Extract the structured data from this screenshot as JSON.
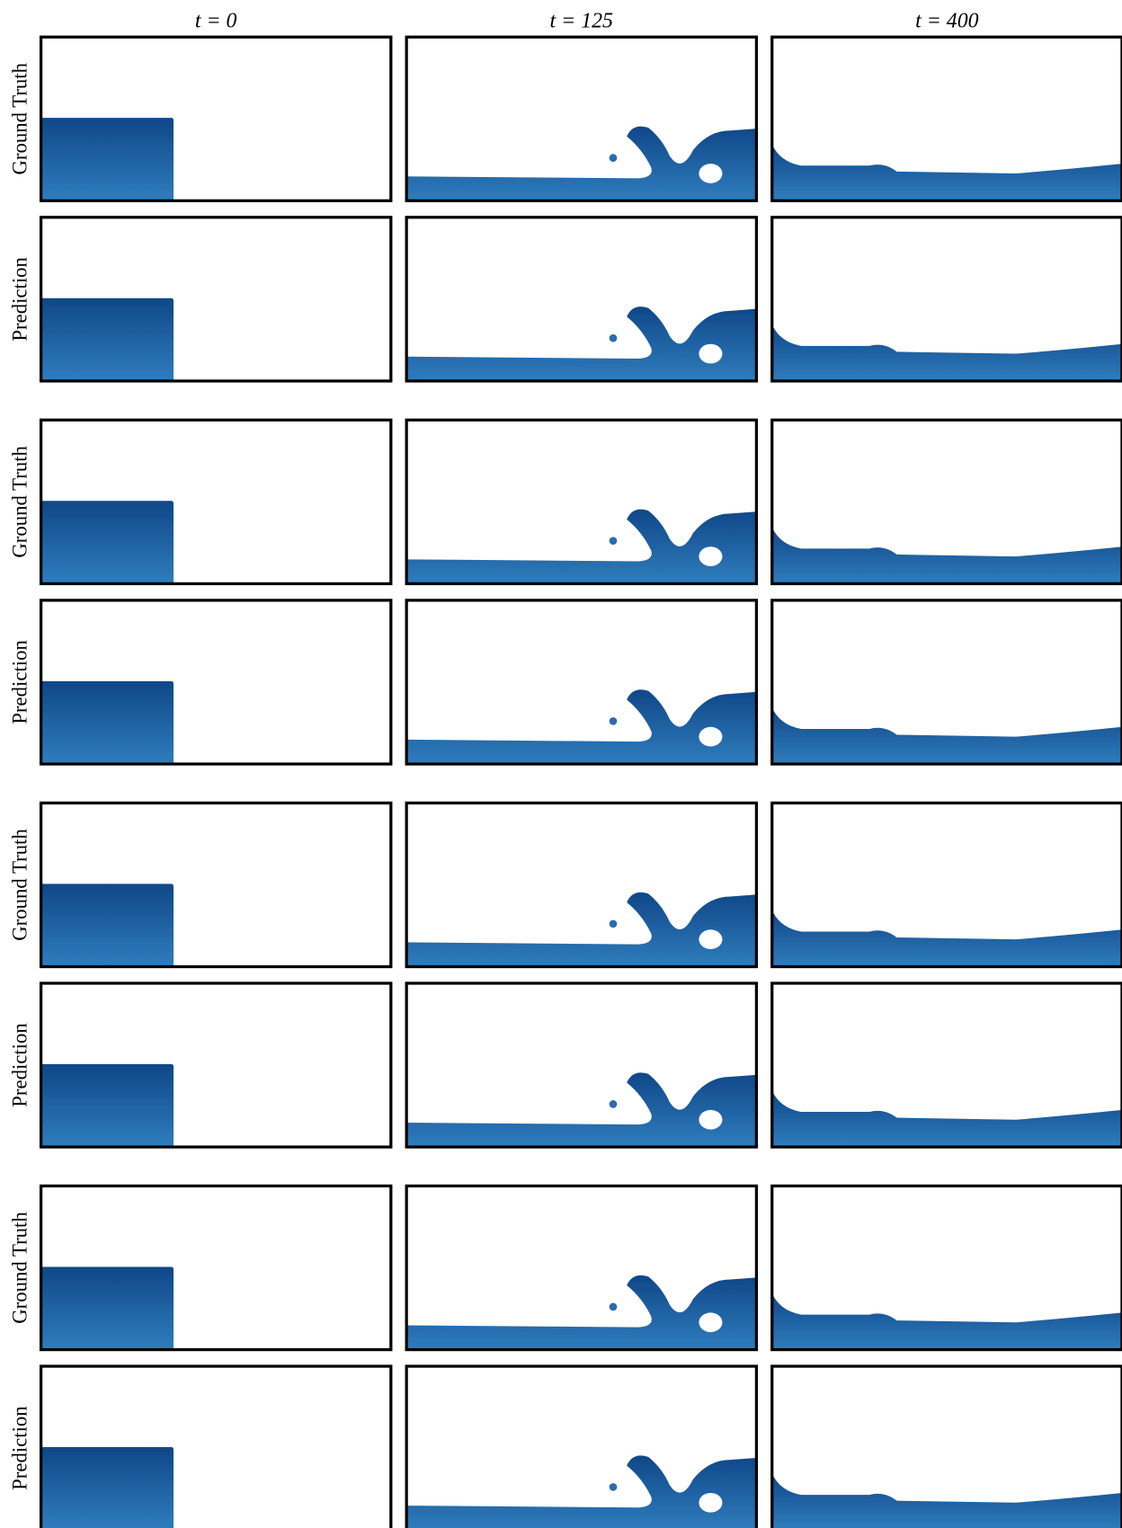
{
  "columns": [
    "t = 0",
    "t = 125",
    "t = 400"
  ],
  "rows": [
    {
      "label": "Ground Truth"
    },
    {
      "label": "Prediction"
    },
    {
      "label": "Ground Truth"
    },
    {
      "label": "Prediction"
    },
    {
      "label": "Ground Truth"
    },
    {
      "label": "Prediction"
    },
    {
      "label": "Ground Truth"
    },
    {
      "label": "Prediction"
    }
  ]
}
